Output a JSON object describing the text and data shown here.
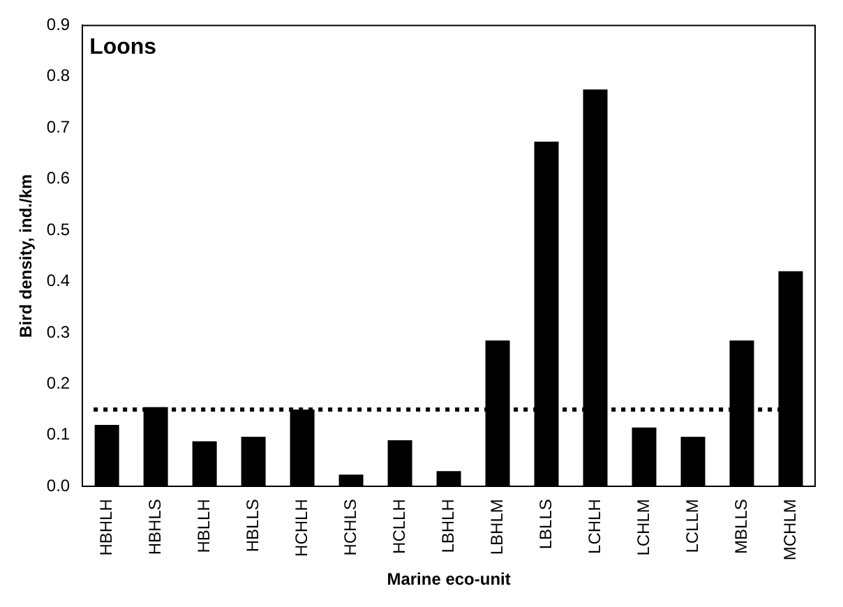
{
  "chart_data": {
    "type": "bar",
    "title": "Loons",
    "xlabel": "Marine eco-unit",
    "ylabel": "Bird density, ind./km",
    "categories": [
      "HBHLH",
      "HBHLS",
      "HBLLH",
      "HBLLS",
      "HCHLH",
      "HCHLS",
      "HCLLH",
      "LBHLH",
      "LBHLM",
      "LBLLS",
      "LCHLH",
      "LCHLM",
      "LCLLM",
      "MBLLS",
      "MCHLM"
    ],
    "values": [
      0.12,
      0.155,
      0.088,
      0.097,
      0.15,
      0.023,
      0.09,
      0.03,
      0.285,
      0.673,
      0.775,
      0.115,
      0.097,
      0.285,
      0.42
    ],
    "color": "#000000",
    "ylim": [
      0,
      0.9
    ],
    "yticks": [
      {
        "value": 0,
        "label": "0.0"
      },
      0.1,
      0.2,
      0.3,
      0.4,
      0.5,
      0.6,
      0.7,
      0.8,
      0.9
    ],
    "ref_lines": [
      {
        "axis": "y",
        "value": 0.15,
        "color": "#000000",
        "line_style": "dotted"
      }
    ],
    "grid": false,
    "legend": false
  }
}
